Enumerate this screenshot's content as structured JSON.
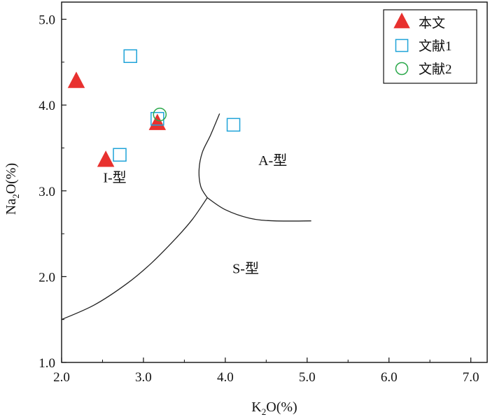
{
  "chart_data": {
    "type": "scatter",
    "xlabel": {
      "main": "K",
      "sub": "2",
      "rest": "O(%)"
    },
    "ylabel": {
      "main": "Na",
      "sub": "2",
      "rest": "O(%)"
    },
    "xlim": [
      2.0,
      7.2
    ],
    "ylim": [
      1.0,
      5.2
    ],
    "x_ticks": [
      2.0,
      3.0,
      4.0,
      5.0,
      6.0,
      7.0
    ],
    "x_tick_labels": [
      "2.0",
      "3.0",
      "4.0",
      "5.0",
      "6.0",
      "7.0"
    ],
    "y_ticks": [
      1.0,
      2.0,
      3.0,
      4.0,
      5.0
    ],
    "y_tick_labels": [
      "1.0",
      "2.0",
      "3.0",
      "4.0",
      "5.0"
    ],
    "grid": false,
    "legend_position": "top-right",
    "series": [
      {
        "name": "本文",
        "marker": "triangle",
        "color": "#e8312f",
        "filled": true,
        "points": [
          {
            "x": 2.18,
            "y": 4.27
          },
          {
            "x": 2.54,
            "y": 3.35
          },
          {
            "x": 3.17,
            "y": 3.78
          }
        ]
      },
      {
        "name": "文献1",
        "marker": "square",
        "color": "#1fa3d8",
        "filled": false,
        "points": [
          {
            "x": 2.84,
            "y": 4.57
          },
          {
            "x": 2.71,
            "y": 3.42
          },
          {
            "x": 3.17,
            "y": 3.84
          },
          {
            "x": 4.1,
            "y": 3.77
          }
        ]
      },
      {
        "name": "文献2",
        "marker": "circle",
        "color": "#2aa84a",
        "filled": false,
        "points": [
          {
            "x": 3.2,
            "y": 3.89
          }
        ]
      }
    ],
    "boundaries": [
      {
        "name": "I-S boundary",
        "points": [
          [
            2.0,
            1.5
          ],
          [
            2.4,
            1.67
          ],
          [
            2.8,
            1.92
          ],
          [
            3.1,
            2.16
          ],
          [
            3.4,
            2.45
          ],
          [
            3.6,
            2.67
          ],
          [
            3.78,
            2.92
          ]
        ]
      },
      {
        "name": "I-A boundary",
        "points": [
          [
            3.78,
            2.92
          ],
          [
            3.7,
            3.05
          ],
          [
            3.68,
            3.25
          ],
          [
            3.72,
            3.45
          ],
          [
            3.82,
            3.65
          ],
          [
            3.93,
            3.9
          ]
        ]
      },
      {
        "name": "A-S boundary",
        "points": [
          [
            3.78,
            2.92
          ],
          [
            4.0,
            2.78
          ],
          [
            4.3,
            2.68
          ],
          [
            4.6,
            2.65
          ],
          [
            5.05,
            2.65
          ]
        ]
      }
    ],
    "region_labels": [
      {
        "text": "I-型",
        "x": 2.65,
        "y": 3.1
      },
      {
        "text": "A-型",
        "x": 4.58,
        "y": 3.3
      },
      {
        "text": "S-型",
        "x": 4.25,
        "y": 2.04
      }
    ]
  }
}
